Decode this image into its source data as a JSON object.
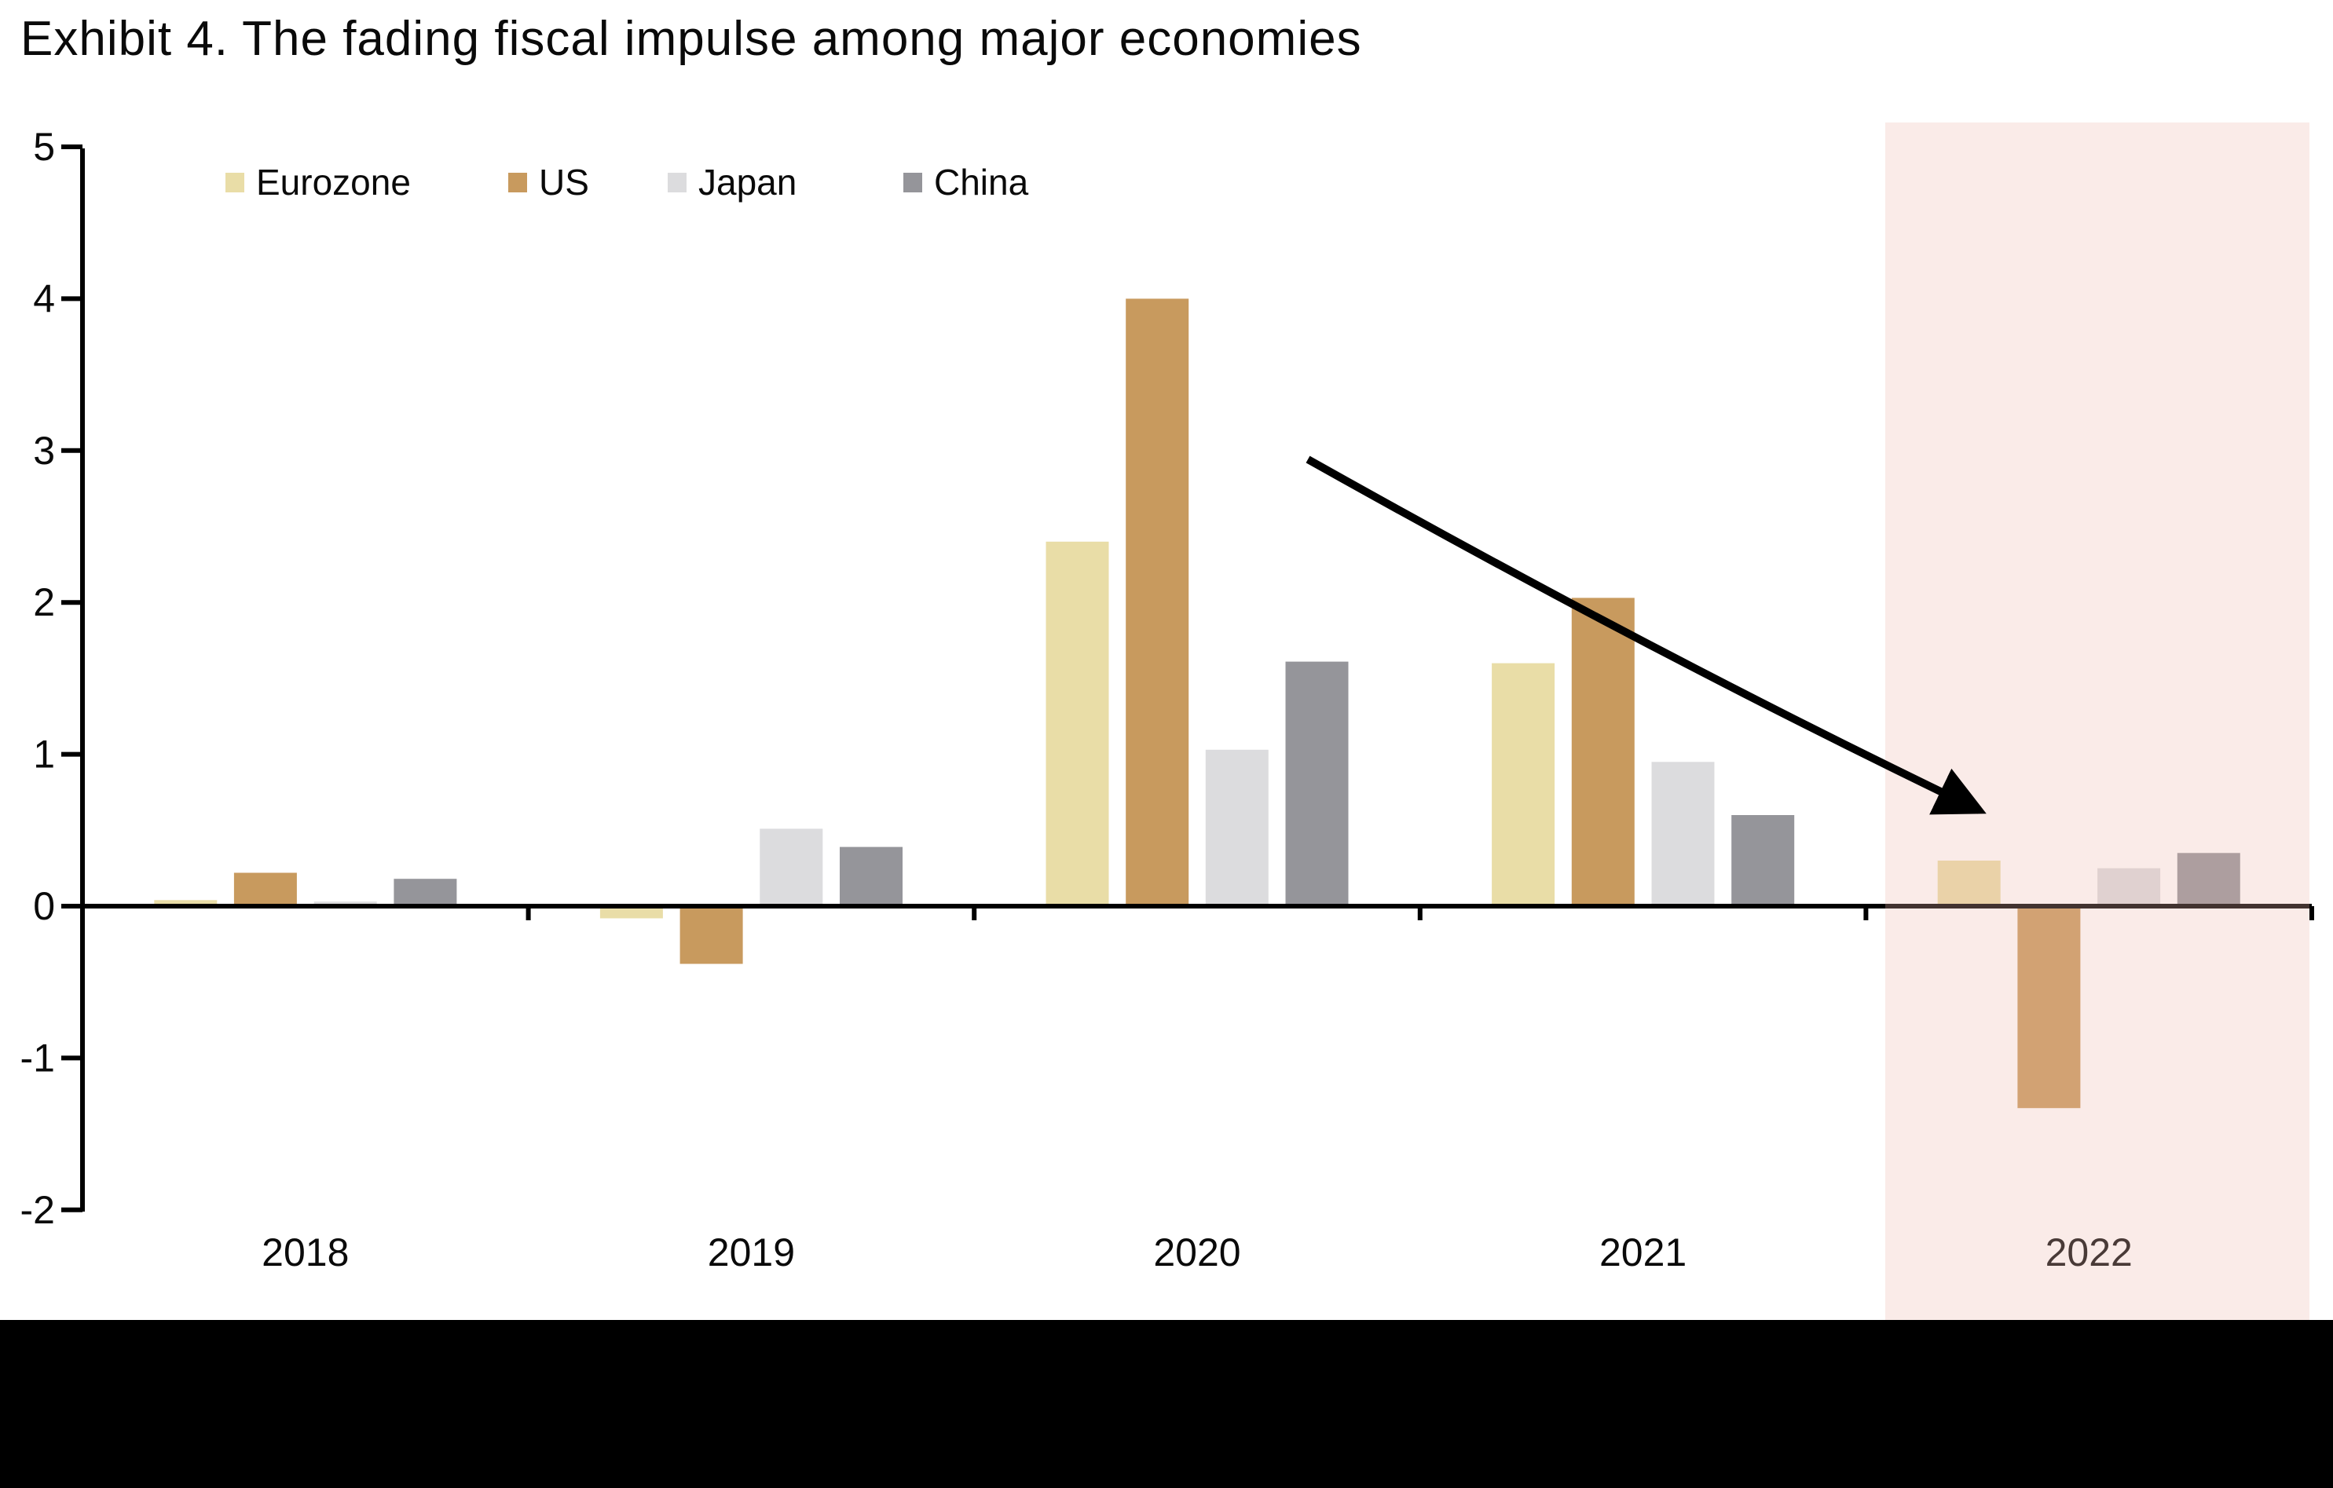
{
  "chart_data": {
    "type": "bar",
    "title": "Exhibit 4. The fading fiscal impulse among major economies",
    "categories": [
      "2018",
      "2019",
      "2020",
      "2021",
      "2022"
    ],
    "series": [
      {
        "name": "Eurozone",
        "color": "#e9dda7",
        "values": [
          0.04,
          -0.08,
          2.4,
          1.6,
          0.3
        ]
      },
      {
        "name": "US",
        "color": "#c89a5e",
        "values": [
          0.22,
          -0.38,
          4.0,
          2.03,
          -1.33
        ]
      },
      {
        "name": "Japan",
        "color": "#dcdcde",
        "values": [
          0.03,
          0.51,
          1.03,
          0.95,
          0.25
        ]
      },
      {
        "name": "China",
        "color": "#95959a",
        "values": [
          0.18,
          0.39,
          1.61,
          0.6,
          0.35
        ]
      }
    ],
    "xlabel": "",
    "ylabel": "",
    "ylim": [
      -2,
      5
    ],
    "y_ticks": [
      5,
      4,
      3,
      2,
      1,
      0,
      -1,
      -2
    ],
    "grid": false,
    "legend_position": "top-left",
    "axis_color": "#000000",
    "highlight_band": {
      "category": "2022",
      "overlay_color_rgba": "rgba(236,182,172,0.28)",
      "appears_as_hex_on_white": "#f9e9e7"
    },
    "annotation_arrow": {
      "color": "#000000",
      "from": {
        "category": "2020",
        "value": 2.95
      },
      "to": {
        "category": "2022",
        "value": 0.55
      },
      "meaning": "declining fiscal impulse trend"
    }
  }
}
